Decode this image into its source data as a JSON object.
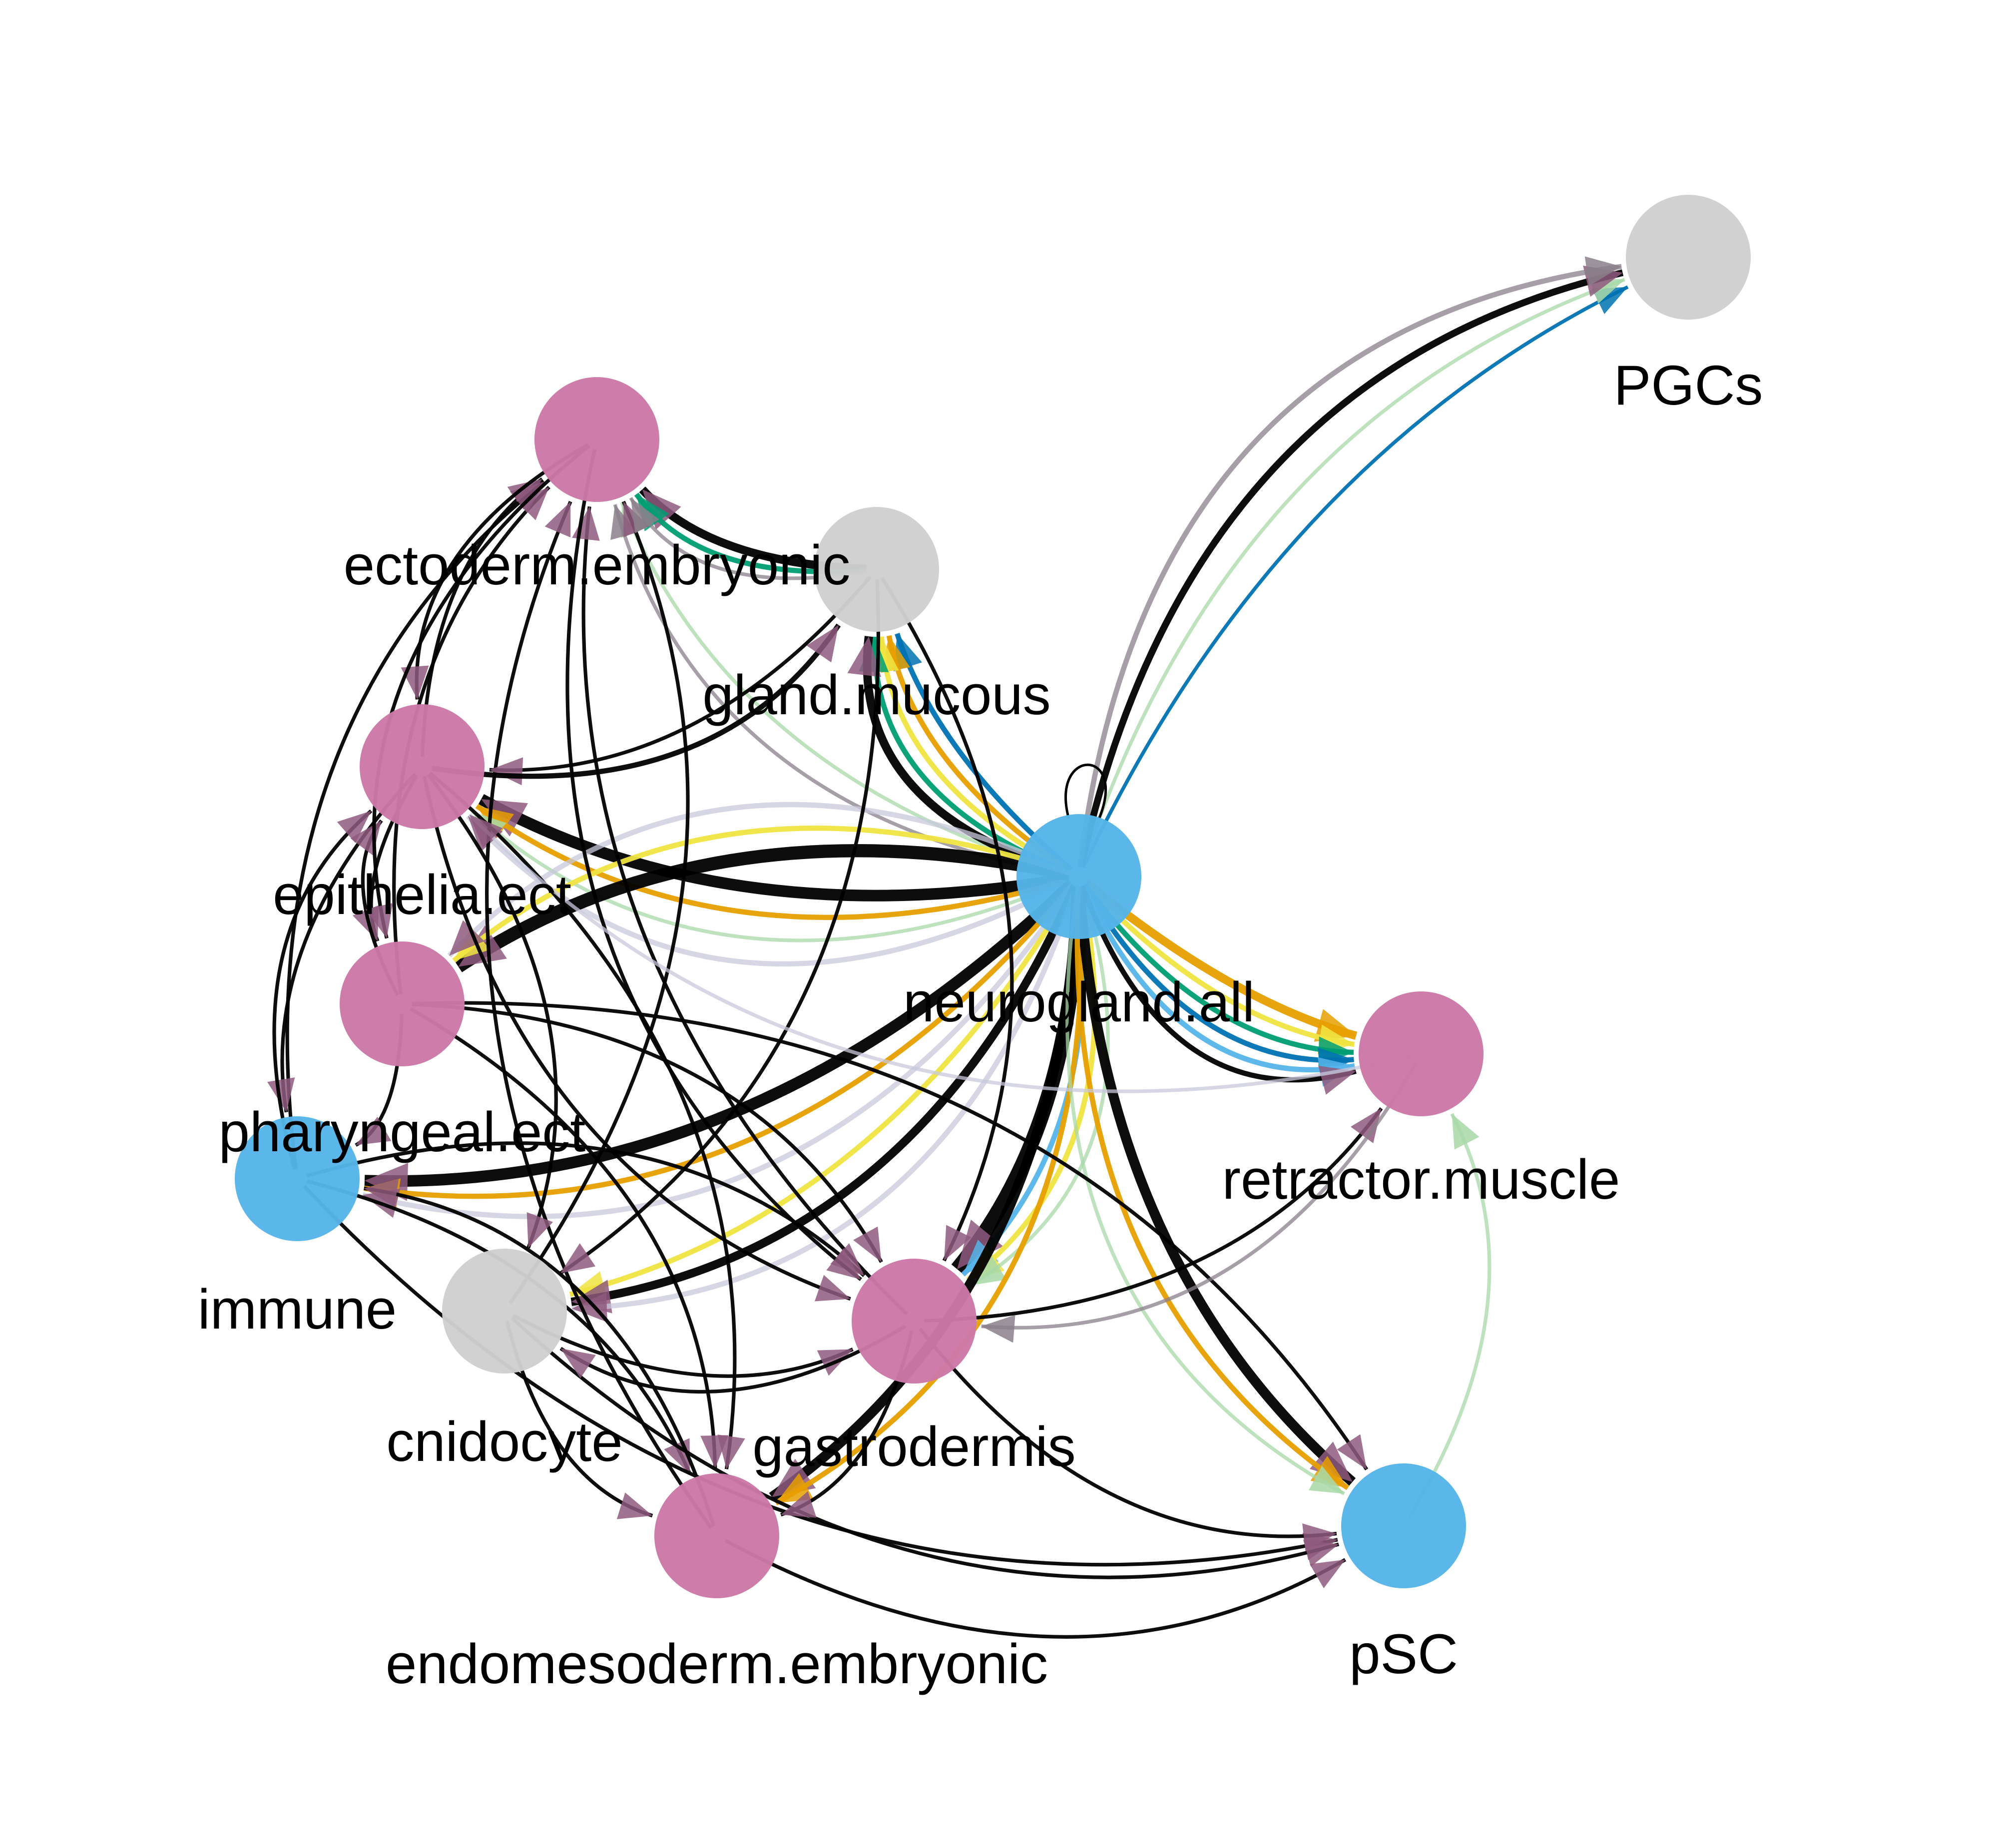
{
  "node_colors": {
    "pink": "#cc79a7",
    "blue": "#56b4e9",
    "grey": "#cfcfcf"
  },
  "edge_colors": {
    "black": "#000000",
    "orange": "#e69f00",
    "yellow": "#f0e442",
    "green": "#009e73",
    "sky": "#56b4e9",
    "blue": "#0072b2",
    "lightgreen": "#a8d8a8",
    "lavender": "#c8c8dc",
    "mauve": "#8e5a7e",
    "greymauve": "#8a7f8a"
  },
  "nodes": [
    {
      "id": "PGCs",
      "label": "PGCs",
      "color": "grey"
    },
    {
      "id": "ectoderm.embryonic",
      "label": "ectoderm.embryonic",
      "color": "pink"
    },
    {
      "id": "gland.mucous",
      "label": "gland.mucous",
      "color": "grey"
    },
    {
      "id": "epithelia.ect",
      "label": "epithelia.ect",
      "color": "pink"
    },
    {
      "id": "neurogland.all",
      "label": "neurogland.all",
      "color": "blue"
    },
    {
      "id": "pharyngeal.ect",
      "label": "pharyngeal.ect",
      "color": "pink"
    },
    {
      "id": "retractor.muscle",
      "label": "retractor.muscle",
      "color": "pink"
    },
    {
      "id": "immune",
      "label": "immune",
      "color": "blue"
    },
    {
      "id": "cnidocyte",
      "label": "cnidocyte",
      "color": "grey"
    },
    {
      "id": "gastrodermis",
      "label": "gastrodermis",
      "color": "pink"
    },
    {
      "id": "endomesoderm.embryonic",
      "label": "endomesoderm.embryonic",
      "color": "pink"
    },
    {
      "id": "pSC",
      "label": "pSC",
      "color": "blue"
    }
  ],
  "edges": [
    {
      "source": "neurogland.all",
      "target": "PGCs",
      "color": "blue",
      "weight": 1
    },
    {
      "source": "neurogland.all",
      "target": "PGCs",
      "color": "lightgreen",
      "weight": 1
    },
    {
      "source": "neurogland.all",
      "target": "PGCs",
      "color": "black",
      "weight": 3
    },
    {
      "source": "neurogland.all",
      "target": "PGCs",
      "color": "greymauve",
      "weight": 2
    },
    {
      "source": "gland.mucous",
      "target": "ectoderm.embryonic",
      "color": "black",
      "weight": 4
    },
    {
      "source": "gland.mucous",
      "target": "ectoderm.embryonic",
      "color": "green",
      "weight": 2
    },
    {
      "source": "neurogland.all",
      "target": "ectoderm.embryonic",
      "color": "lightgreen",
      "weight": 1
    },
    {
      "source": "neurogland.all",
      "target": "ectoderm.embryonic",
      "color": "greymauve",
      "weight": 1
    },
    {
      "source": "neurogland.all",
      "target": "gland.mucous",
      "color": "blue",
      "weight": 2
    },
    {
      "source": "neurogland.all",
      "target": "gland.mucous",
      "color": "orange",
      "weight": 2
    },
    {
      "source": "neurogland.all",
      "target": "gland.mucous",
      "color": "yellow",
      "weight": 2
    },
    {
      "source": "neurogland.all",
      "target": "gland.mucous",
      "color": "green",
      "weight": 2
    },
    {
      "source": "neurogland.all",
      "target": "gland.mucous",
      "color": "black",
      "weight": 4
    },
    {
      "source": "neurogland.all",
      "target": "epithelia.ect",
      "color": "black",
      "weight": 6
    },
    {
      "source": "neurogland.all",
      "target": "epithelia.ect",
      "color": "orange",
      "weight": 2
    },
    {
      "source": "neurogland.all",
      "target": "epithelia.ect",
      "color": "lightgreen",
      "weight": 1
    },
    {
      "source": "neurogland.all",
      "target": "epithelia.ect",
      "color": "lavender",
      "weight": 2
    },
    {
      "source": "neurogland.all",
      "target": "pharyngeal.ect",
      "color": "black",
      "weight": 7
    },
    {
      "source": "neurogland.all",
      "target": "pharyngeal.ect",
      "color": "yellow",
      "weight": 2
    },
    {
      "source": "neurogland.all",
      "target": "pharyngeal.ect",
      "color": "lavender",
      "weight": 2
    },
    {
      "source": "neurogland.all",
      "target": "immune",
      "color": "black",
      "weight": 6
    },
    {
      "source": "neurogland.all",
      "target": "immune",
      "color": "orange",
      "weight": 2
    },
    {
      "source": "neurogland.all",
      "target": "immune",
      "color": "lavender",
      "weight": 2
    },
    {
      "source": "neurogland.all",
      "target": "cnidocyte",
      "color": "yellow",
      "weight": 2
    },
    {
      "source": "neurogland.all",
      "target": "cnidocyte",
      "color": "black",
      "weight": 4
    },
    {
      "source": "neurogland.all",
      "target": "cnidocyte",
      "color": "lavender",
      "weight": 2
    },
    {
      "source": "neurogland.all",
      "target": "gastrodermis",
      "color": "black",
      "weight": 8
    },
    {
      "source": "neurogland.all",
      "target": "gastrodermis",
      "color": "sky",
      "weight": 2
    },
    {
      "source": "neurogland.all",
      "target": "gastrodermis",
      "color": "yellow",
      "weight": 2
    },
    {
      "source": "neurogland.all",
      "target": "gastrodermis",
      "color": "lightgreen",
      "weight": 1
    },
    {
      "source": "neurogland.all",
      "target": "endomesoderm.embryonic",
      "color": "black",
      "weight": 5
    },
    {
      "source": "neurogland.all",
      "target": "endomesoderm.embryonic",
      "color": "orange",
      "weight": 2
    },
    {
      "source": "neurogland.all",
      "target": "retractor.muscle",
      "color": "orange",
      "weight": 4
    },
    {
      "source": "neurogland.all",
      "target": "retractor.muscle",
      "color": "yellow",
      "weight": 2
    },
    {
      "source": "neurogland.all",
      "target": "retractor.muscle",
      "color": "green",
      "weight": 2
    },
    {
      "source": "neurogland.all",
      "target": "retractor.muscle",
      "color": "blue",
      "weight": 2
    },
    {
      "source": "neurogland.all",
      "target": "retractor.muscle",
      "color": "sky",
      "weight": 2
    },
    {
      "source": "neurogland.all",
      "target": "retractor.muscle",
      "color": "black",
      "weight": 2
    },
    {
      "source": "neurogland.all",
      "target": "pSC",
      "color": "black",
      "weight": 5
    },
    {
      "source": "neurogland.all",
      "target": "pSC",
      "color": "orange",
      "weight": 2
    },
    {
      "source": "neurogland.all",
      "target": "pSC",
      "color": "lightgreen",
      "weight": 1
    },
    {
      "source": "pSC",
      "target": "retractor.muscle",
      "color": "lightgreen",
      "weight": 1
    },
    {
      "source": "epithelia.ect",
      "target": "ectoderm.embryonic",
      "color": "black",
      "weight": 1
    },
    {
      "source": "pharyngeal.ect",
      "target": "ectoderm.embryonic",
      "color": "black",
      "weight": 1
    },
    {
      "source": "immune",
      "target": "ectoderm.embryonic",
      "color": "black",
      "weight": 1
    },
    {
      "source": "cnidocyte",
      "target": "ectoderm.embryonic",
      "color": "black",
      "weight": 1
    },
    {
      "source": "gastrodermis",
      "target": "ectoderm.embryonic",
      "color": "black",
      "weight": 1
    },
    {
      "source": "endomesoderm.embryonic",
      "target": "ectoderm.embryonic",
      "color": "black",
      "weight": 1
    },
    {
      "source": "gland.mucous",
      "target": "epithelia.ect",
      "color": "black",
      "weight": 1
    },
    {
      "source": "gland.mucous",
      "target": "cnidocyte",
      "color": "black",
      "weight": 1
    },
    {
      "source": "gland.mucous",
      "target": "gastrodermis",
      "color": "black",
      "weight": 1
    },
    {
      "source": "epithelia.ect",
      "target": "pharyngeal.ect",
      "color": "black",
      "weight": 1
    },
    {
      "source": "epithelia.ect",
      "target": "immune",
      "color": "black",
      "weight": 1
    },
    {
      "source": "epithelia.ect",
      "target": "gastrodermis",
      "color": "black",
      "weight": 1
    },
    {
      "source": "epithelia.ect",
      "target": "endomesoderm.embryonic",
      "color": "black",
      "weight": 1
    },
    {
      "source": "pharyngeal.ect",
      "target": "immune",
      "color": "black",
      "weight": 1
    },
    {
      "source": "pharyngeal.ect",
      "target": "epithelia.ect",
      "color": "black",
      "weight": 1
    },
    {
      "source": "pharyngeal.ect",
      "target": "gastrodermis",
      "color": "black",
      "weight": 1
    },
    {
      "source": "pharyngeal.ect",
      "target": "endomesoderm.embryonic",
      "color": "black",
      "weight": 1
    },
    {
      "source": "pharyngeal.ect",
      "target": "pSC",
      "color": "black",
      "weight": 1
    },
    {
      "source": "immune",
      "target": "gastrodermis",
      "color": "black",
      "weight": 1
    },
    {
      "source": "immune",
      "target": "endomesoderm.embryonic",
      "color": "black",
      "weight": 1
    },
    {
      "source": "immune",
      "target": "pSC",
      "color": "black",
      "weight": 1
    },
    {
      "source": "cnidocyte",
      "target": "gastrodermis",
      "color": "black",
      "weight": 1
    },
    {
      "source": "cnidocyte",
      "target": "endomesoderm.embryonic",
      "color": "black",
      "weight": 1
    },
    {
      "source": "cnidocyte",
      "target": "pSC",
      "color": "black",
      "weight": 1
    },
    {
      "source": "gastrodermis",
      "target": "endomesoderm.embryonic",
      "color": "black",
      "weight": 1
    },
    {
      "source": "gastrodermis",
      "target": "pSC",
      "color": "black",
      "weight": 1
    },
    {
      "source": "gastrodermis",
      "target": "cnidocyte",
      "color": "black",
      "weight": 1
    },
    {
      "source": "endomesoderm.embryonic",
      "target": "pSC",
      "color": "black",
      "weight": 1
    },
    {
      "source": "endomesoderm.embryonic",
      "target": "immune",
      "color": "black",
      "weight": 1
    },
    {
      "source": "ectoderm.embryonic",
      "target": "epithelia.ect",
      "color": "black",
      "weight": 1
    },
    {
      "source": "ectoderm.embryonic",
      "target": "pharyngeal.ect",
      "color": "black",
      "weight": 1
    },
    {
      "source": "ectoderm.embryonic",
      "target": "gastrodermis",
      "color": "black",
      "weight": 1
    },
    {
      "source": "epithelia.ect",
      "target": "gland.mucous",
      "color": "black",
      "weight": 2
    },
    {
      "source": "gastrodermis",
      "target": "retractor.muscle",
      "color": "black",
      "weight": 1
    },
    {
      "source": "retractor.muscle",
      "target": "epithelia.ect",
      "color": "lavender",
      "weight": 1
    },
    {
      "source": "retractor.muscle",
      "target": "gastrodermis",
      "color": "greymauve",
      "weight": 1
    },
    {
      "source": "gland.mucous",
      "target": "ectoderm.embryonic",
      "color": "greymauve",
      "weight": 1
    },
    {
      "source": "epithelia.ect",
      "target": "cnidocyte",
      "color": "black",
      "weight": 1
    },
    {
      "source": "immune",
      "target": "epithelia.ect",
      "color": "black",
      "weight": 1
    }
  ]
}
